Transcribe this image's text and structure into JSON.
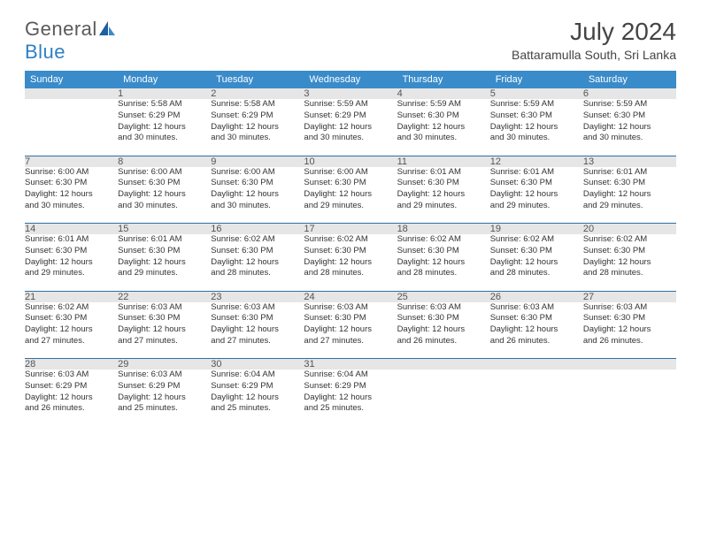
{
  "logo": {
    "text_gray": "General",
    "text_blue": "Blue"
  },
  "title": "July 2024",
  "location": "Battaramulla South, Sri Lanka",
  "colors": {
    "header_bg": "#3a8bca",
    "header_text": "#ffffff",
    "daynum_bg": "#e6e6e6",
    "row_border": "#2f6fa5",
    "logo_gray": "#5a5a5a",
    "logo_blue": "#2f7fc5"
  },
  "weekdays": [
    "Sunday",
    "Monday",
    "Tuesday",
    "Wednesday",
    "Thursday",
    "Friday",
    "Saturday"
  ],
  "weeks": [
    {
      "nums": [
        "",
        "1",
        "2",
        "3",
        "4",
        "5",
        "6"
      ],
      "cells": [
        {
          "empty": true
        },
        {
          "sunrise": "Sunrise: 5:58 AM",
          "sunset": "Sunset: 6:29 PM",
          "day1": "Daylight: 12 hours",
          "day2": "and 30 minutes."
        },
        {
          "sunrise": "Sunrise: 5:58 AM",
          "sunset": "Sunset: 6:29 PM",
          "day1": "Daylight: 12 hours",
          "day2": "and 30 minutes."
        },
        {
          "sunrise": "Sunrise: 5:59 AM",
          "sunset": "Sunset: 6:29 PM",
          "day1": "Daylight: 12 hours",
          "day2": "and 30 minutes."
        },
        {
          "sunrise": "Sunrise: 5:59 AM",
          "sunset": "Sunset: 6:30 PM",
          "day1": "Daylight: 12 hours",
          "day2": "and 30 minutes."
        },
        {
          "sunrise": "Sunrise: 5:59 AM",
          "sunset": "Sunset: 6:30 PM",
          "day1": "Daylight: 12 hours",
          "day2": "and 30 minutes."
        },
        {
          "sunrise": "Sunrise: 5:59 AM",
          "sunset": "Sunset: 6:30 PM",
          "day1": "Daylight: 12 hours",
          "day2": "and 30 minutes."
        }
      ]
    },
    {
      "nums": [
        "7",
        "8",
        "9",
        "10",
        "11",
        "12",
        "13"
      ],
      "cells": [
        {
          "sunrise": "Sunrise: 6:00 AM",
          "sunset": "Sunset: 6:30 PM",
          "day1": "Daylight: 12 hours",
          "day2": "and 30 minutes."
        },
        {
          "sunrise": "Sunrise: 6:00 AM",
          "sunset": "Sunset: 6:30 PM",
          "day1": "Daylight: 12 hours",
          "day2": "and 30 minutes."
        },
        {
          "sunrise": "Sunrise: 6:00 AM",
          "sunset": "Sunset: 6:30 PM",
          "day1": "Daylight: 12 hours",
          "day2": "and 30 minutes."
        },
        {
          "sunrise": "Sunrise: 6:00 AM",
          "sunset": "Sunset: 6:30 PM",
          "day1": "Daylight: 12 hours",
          "day2": "and 29 minutes."
        },
        {
          "sunrise": "Sunrise: 6:01 AM",
          "sunset": "Sunset: 6:30 PM",
          "day1": "Daylight: 12 hours",
          "day2": "and 29 minutes."
        },
        {
          "sunrise": "Sunrise: 6:01 AM",
          "sunset": "Sunset: 6:30 PM",
          "day1": "Daylight: 12 hours",
          "day2": "and 29 minutes."
        },
        {
          "sunrise": "Sunrise: 6:01 AM",
          "sunset": "Sunset: 6:30 PM",
          "day1": "Daylight: 12 hours",
          "day2": "and 29 minutes."
        }
      ]
    },
    {
      "nums": [
        "14",
        "15",
        "16",
        "17",
        "18",
        "19",
        "20"
      ],
      "cells": [
        {
          "sunrise": "Sunrise: 6:01 AM",
          "sunset": "Sunset: 6:30 PM",
          "day1": "Daylight: 12 hours",
          "day2": "and 29 minutes."
        },
        {
          "sunrise": "Sunrise: 6:01 AM",
          "sunset": "Sunset: 6:30 PM",
          "day1": "Daylight: 12 hours",
          "day2": "and 29 minutes."
        },
        {
          "sunrise": "Sunrise: 6:02 AM",
          "sunset": "Sunset: 6:30 PM",
          "day1": "Daylight: 12 hours",
          "day2": "and 28 minutes."
        },
        {
          "sunrise": "Sunrise: 6:02 AM",
          "sunset": "Sunset: 6:30 PM",
          "day1": "Daylight: 12 hours",
          "day2": "and 28 minutes."
        },
        {
          "sunrise": "Sunrise: 6:02 AM",
          "sunset": "Sunset: 6:30 PM",
          "day1": "Daylight: 12 hours",
          "day2": "and 28 minutes."
        },
        {
          "sunrise": "Sunrise: 6:02 AM",
          "sunset": "Sunset: 6:30 PM",
          "day1": "Daylight: 12 hours",
          "day2": "and 28 minutes."
        },
        {
          "sunrise": "Sunrise: 6:02 AM",
          "sunset": "Sunset: 6:30 PM",
          "day1": "Daylight: 12 hours",
          "day2": "and 28 minutes."
        }
      ]
    },
    {
      "nums": [
        "21",
        "22",
        "23",
        "24",
        "25",
        "26",
        "27"
      ],
      "cells": [
        {
          "sunrise": "Sunrise: 6:02 AM",
          "sunset": "Sunset: 6:30 PM",
          "day1": "Daylight: 12 hours",
          "day2": "and 27 minutes."
        },
        {
          "sunrise": "Sunrise: 6:03 AM",
          "sunset": "Sunset: 6:30 PM",
          "day1": "Daylight: 12 hours",
          "day2": "and 27 minutes."
        },
        {
          "sunrise": "Sunrise: 6:03 AM",
          "sunset": "Sunset: 6:30 PM",
          "day1": "Daylight: 12 hours",
          "day2": "and 27 minutes."
        },
        {
          "sunrise": "Sunrise: 6:03 AM",
          "sunset": "Sunset: 6:30 PM",
          "day1": "Daylight: 12 hours",
          "day2": "and 27 minutes."
        },
        {
          "sunrise": "Sunrise: 6:03 AM",
          "sunset": "Sunset: 6:30 PM",
          "day1": "Daylight: 12 hours",
          "day2": "and 26 minutes."
        },
        {
          "sunrise": "Sunrise: 6:03 AM",
          "sunset": "Sunset: 6:30 PM",
          "day1": "Daylight: 12 hours",
          "day2": "and 26 minutes."
        },
        {
          "sunrise": "Sunrise: 6:03 AM",
          "sunset": "Sunset: 6:30 PM",
          "day1": "Daylight: 12 hours",
          "day2": "and 26 minutes."
        }
      ]
    },
    {
      "nums": [
        "28",
        "29",
        "30",
        "31",
        "",
        "",
        ""
      ],
      "cells": [
        {
          "sunrise": "Sunrise: 6:03 AM",
          "sunset": "Sunset: 6:29 PM",
          "day1": "Daylight: 12 hours",
          "day2": "and 26 minutes."
        },
        {
          "sunrise": "Sunrise: 6:03 AM",
          "sunset": "Sunset: 6:29 PM",
          "day1": "Daylight: 12 hours",
          "day2": "and 25 minutes."
        },
        {
          "sunrise": "Sunrise: 6:04 AM",
          "sunset": "Sunset: 6:29 PM",
          "day1": "Daylight: 12 hours",
          "day2": "and 25 minutes."
        },
        {
          "sunrise": "Sunrise: 6:04 AM",
          "sunset": "Sunset: 6:29 PM",
          "day1": "Daylight: 12 hours",
          "day2": "and 25 minutes."
        },
        {
          "empty": true
        },
        {
          "empty": true
        },
        {
          "empty": true
        }
      ]
    }
  ]
}
